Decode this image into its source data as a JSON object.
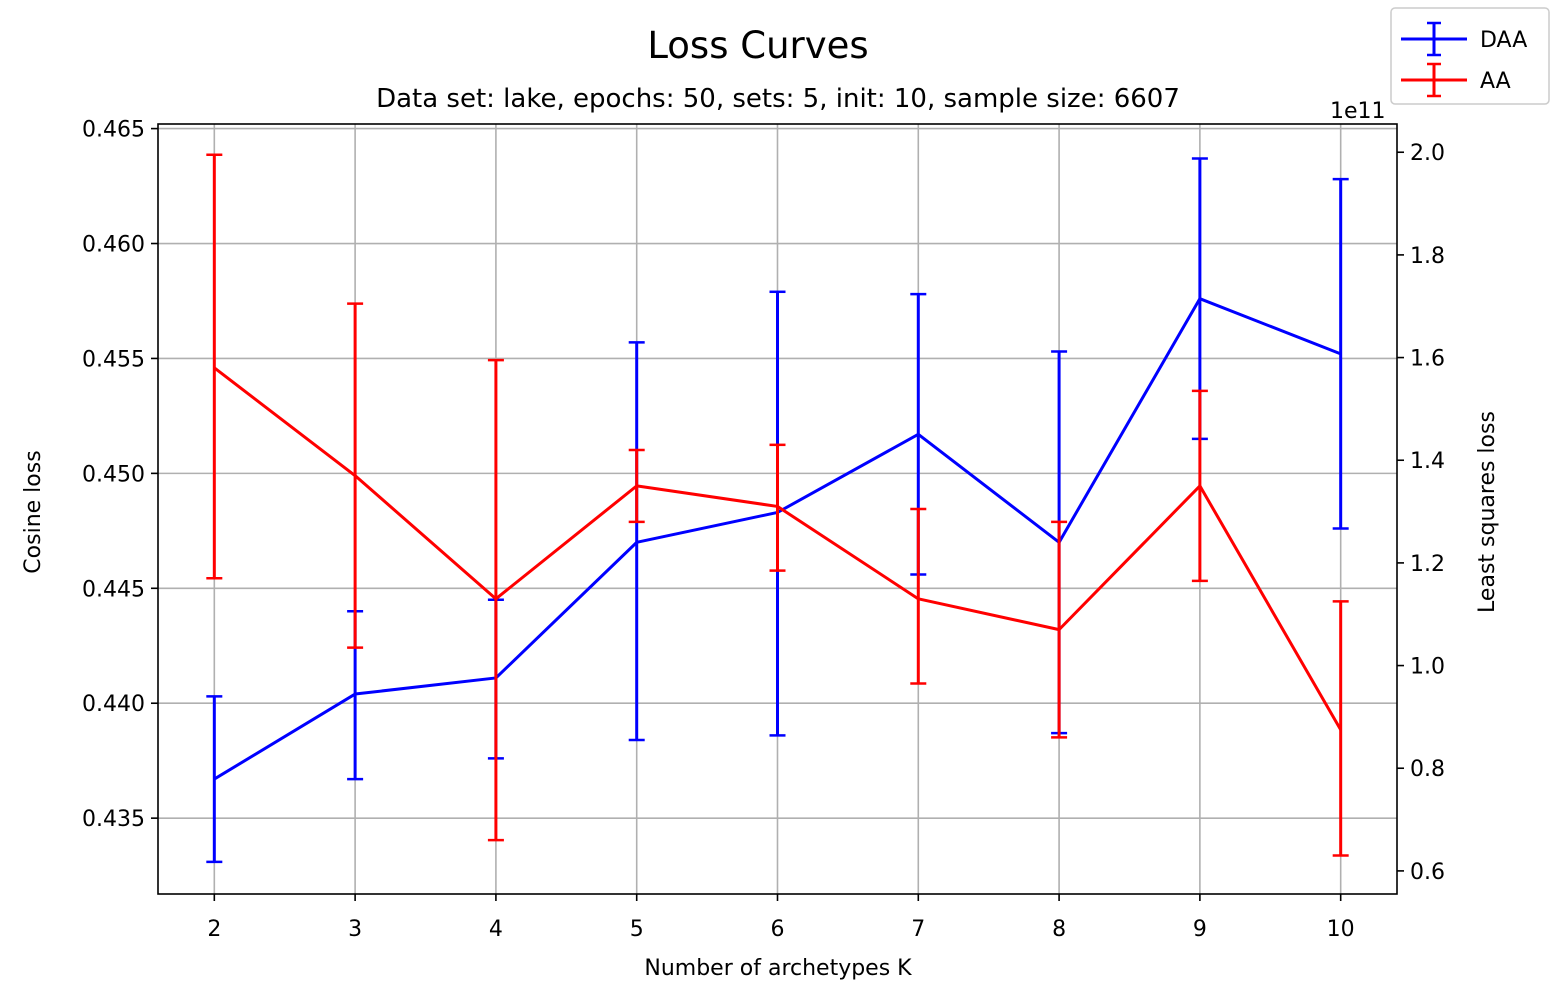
{
  "chart_data": {
    "type": "line",
    "title": "Loss Curves",
    "subtitle": "Data set:  lake, epochs: 50, sets: 5, init: 10, sample size: 6607",
    "xlabel": "Number of archetypes K",
    "ylabel_left": "Cosine loss",
    "ylabel_right": "Least squares loss",
    "right_axis_offset_text": "1e11",
    "x": [
      2,
      3,
      4,
      5,
      6,
      7,
      8,
      9,
      10
    ],
    "x_ticks": [
      "2",
      "3",
      "4",
      "5",
      "6",
      "7",
      "8",
      "9",
      "10"
    ],
    "ylim_left": [
      0.4317,
      0.4652
    ],
    "y_ticks_left": [
      "0.435",
      "0.440",
      "0.445",
      "0.450",
      "0.455",
      "0.460",
      "0.465"
    ],
    "y_tick_values_left": [
      0.435,
      0.44,
      0.445,
      0.45,
      0.455,
      0.46,
      0.465
    ],
    "ylim_right": [
      0.555,
      2.055
    ],
    "y_ticks_right": [
      "0.6",
      "0.8",
      "1.0",
      "1.2",
      "1.4",
      "1.6",
      "1.8",
      "2.0"
    ],
    "y_tick_values_right": [
      0.6,
      0.8,
      1.0,
      1.2,
      1.4,
      1.6,
      1.8,
      2.0
    ],
    "grid": true,
    "legend_placement": "top-right outside",
    "series": [
      {
        "name": "DAA",
        "axis": "left",
        "color": "#0000ff",
        "values": [
          0.4367,
          0.4404,
          0.4411,
          0.447,
          0.4483,
          0.4517,
          0.447,
          0.4576,
          0.4552
        ],
        "err_low": [
          0.4331,
          0.4367,
          0.4376,
          0.4384,
          0.4386,
          0.4456,
          0.4387,
          0.4515,
          0.4476
        ],
        "err_high": [
          0.4403,
          0.444,
          0.4445,
          0.4557,
          0.4579,
          0.4578,
          0.4553,
          0.4637,
          0.4628
        ]
      },
      {
        "name": "AA",
        "axis": "right",
        "color": "#ff0000",
        "values": [
          1.58,
          1.37,
          1.13,
          1.35,
          1.31,
          1.13,
          1.07,
          1.35,
          0.875
        ],
        "err_low": [
          1.17,
          1.035,
          0.66,
          1.28,
          1.185,
          0.965,
          0.86,
          1.165,
          0.63
        ],
        "err_high": [
          1.995,
          1.705,
          1.595,
          1.42,
          1.43,
          1.305,
          1.28,
          1.535,
          1.125
        ]
      }
    ]
  }
}
